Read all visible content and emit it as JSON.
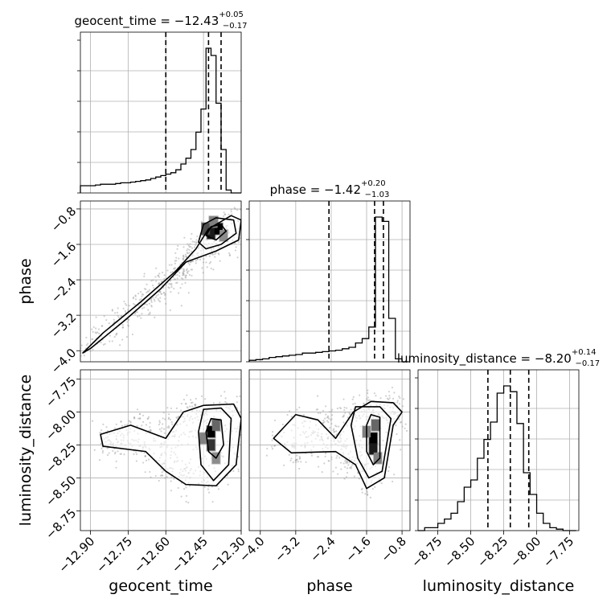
{
  "chart_data": {
    "type": "corner",
    "parameters": [
      "geocent_time",
      "phase",
      "luminosity_distance"
    ],
    "titles": [
      {
        "param": "geocent_time",
        "text": "geocent_time = −12.43",
        "sup": "+0.05",
        "sub": "−0.17"
      },
      {
        "param": "phase",
        "text": "phase = −1.42",
        "sup": "+0.20",
        "sub": "−1.03"
      },
      {
        "param": "luminosity_distance",
        "text": "luminosity_distance = −8.20",
        "sup": "+0.14",
        "sub": "−0.17"
      }
    ],
    "ranges": {
      "geocent_time": [
        -12.94,
        -12.3
      ],
      "phase": [
        -4.25,
        -0.62
      ],
      "luminosity_distance": [
        -8.9,
        -7.68
      ]
    },
    "ticks": {
      "geocent_time": [
        -12.9,
        -12.75,
        -12.6,
        -12.45,
        -12.3
      ],
      "phase": [
        -4.0,
        -3.2,
        -2.4,
        -1.6,
        -0.8
      ],
      "luminosity_distance": [
        -8.75,
        -8.5,
        -8.25,
        -8.0,
        -7.75
      ]
    },
    "tick_labels": {
      "geocent_time": [
        "−12.90",
        "−12.75",
        "−12.60",
        "−12.45",
        "−12.30"
      ],
      "phase": [
        "−4.0",
        "−3.2",
        "−2.4",
        "−1.6",
        "−0.8"
      ],
      "luminosity_distance": [
        "−8.75",
        "−8.50",
        "−8.25",
        "−8.00",
        "−7.75"
      ]
    },
    "quantile_lines": {
      "geocent_time": [
        -12.6,
        -12.43,
        -12.38
      ],
      "phase": [
        -2.45,
        -1.42,
        -1.22
      ],
      "luminosity_distance": [
        -8.37,
        -8.2,
        -8.06
      ]
    },
    "histograms": {
      "geocent_time": {
        "edges": [
          -12.94,
          -12.92,
          -12.9,
          -12.88,
          -12.86,
          -12.84,
          -12.82,
          -12.8,
          -12.78,
          -12.76,
          -12.74,
          -12.72,
          -12.7,
          -12.68,
          -12.66,
          -12.64,
          -12.62,
          -12.6,
          -12.58,
          -12.56,
          -12.54,
          -12.52,
          -12.5,
          -12.48,
          -12.46,
          -12.44,
          -12.42,
          -12.4,
          -12.38,
          -12.36,
          -12.34,
          -12.32,
          -12.3
        ],
        "counts": [
          0.05,
          0.05,
          0.05,
          0.055,
          0.06,
          0.06,
          0.06,
          0.065,
          0.07,
          0.07,
          0.075,
          0.08,
          0.085,
          0.09,
          0.1,
          0.11,
          0.12,
          0.13,
          0.14,
          0.16,
          0.2,
          0.24,
          0.3,
          0.42,
          0.58,
          1.0,
          0.95,
          0.62,
          0.3,
          0.02,
          0.0,
          0.0
        ]
      },
      "phase": {
        "edges": [
          -4.25,
          -4.1,
          -3.95,
          -3.8,
          -3.65,
          -3.5,
          -3.35,
          -3.2,
          -3.05,
          -2.9,
          -2.75,
          -2.6,
          -2.45,
          -2.3,
          -2.15,
          -2.0,
          -1.85,
          -1.7,
          -1.55,
          -1.4,
          -1.25,
          -1.1,
          -0.95,
          -0.8,
          -0.65
        ],
        "counts": [
          0.01,
          0.015,
          0.02,
          0.03,
          0.035,
          0.04,
          0.045,
          0.05,
          0.06,
          0.06,
          0.065,
          0.07,
          0.075,
          0.08,
          0.09,
          0.1,
          0.13,
          0.16,
          0.24,
          1.0,
          0.97,
          0.3,
          0.02,
          0.0
        ]
      },
      "luminosity_distance": {
        "edges": [
          -8.9,
          -8.85,
          -8.8,
          -8.75,
          -8.7,
          -8.65,
          -8.6,
          -8.55,
          -8.5,
          -8.45,
          -8.4,
          -8.35,
          -8.3,
          -8.25,
          -8.2,
          -8.15,
          -8.1,
          -8.05,
          -8.0,
          -7.95,
          -7.9,
          -7.85,
          -7.8,
          -7.75,
          -7.7
        ],
        "counts": [
          0.0,
          0.02,
          0.02,
          0.05,
          0.08,
          0.12,
          0.2,
          0.3,
          0.35,
          0.5,
          0.63,
          0.75,
          0.95,
          1.0,
          0.96,
          0.74,
          0.4,
          0.25,
          0.12,
          0.05,
          0.02,
          0.01,
          0.0,
          0.0
        ]
      }
    },
    "contour_panels": [
      {
        "x": "geocent_time",
        "y": "phase",
        "contours": [
          [
            [
              -12.93,
              -4.05
            ],
            [
              -12.85,
              -3.6
            ],
            [
              -12.7,
              -2.9
            ],
            [
              -12.56,
              -2.2
            ],
            [
              -12.48,
              -1.7
            ],
            [
              -12.43,
              -1.25
            ],
            [
              -12.34,
              -0.95
            ],
            [
              -12.3,
              -1.05
            ],
            [
              -12.31,
              -1.5
            ],
            [
              -12.4,
              -1.75
            ],
            [
              -12.52,
              -2.0
            ],
            [
              -12.62,
              -2.6
            ],
            [
              -12.76,
              -3.3
            ],
            [
              -12.9,
              -3.95
            ]
          ],
          [
            [
              -12.47,
              -1.55
            ],
            [
              -12.45,
              -1.15
            ],
            [
              -12.4,
              -1.0
            ],
            [
              -12.33,
              -1.05
            ],
            [
              -12.32,
              -1.35
            ],
            [
              -12.38,
              -1.6
            ],
            [
              -12.44,
              -1.7
            ]
          ],
          [
            [
              -12.44,
              -1.4
            ],
            [
              -12.42,
              -1.2
            ],
            [
              -12.38,
              -1.15
            ],
            [
              -12.36,
              -1.3
            ],
            [
              -12.4,
              -1.5
            ]
          ]
        ],
        "hotspots": [
          [
            -12.42,
            -1.35,
            0.9
          ],
          [
            -12.39,
            -1.25,
            1.0
          ],
          [
            -12.44,
            -1.25,
            0.7
          ],
          [
            -12.41,
            -1.1,
            0.5
          ],
          [
            -12.37,
            -1.4,
            0.45
          ]
        ]
      },
      {
        "x": "geocent_time",
        "y": "luminosity_distance",
        "contours": [
          [
            [
              -12.86,
              -8.17
            ],
            [
              -12.74,
              -8.1
            ],
            [
              -12.6,
              -8.2
            ],
            [
              -12.53,
              -8.0
            ],
            [
              -12.45,
              -7.95
            ],
            [
              -12.33,
              -7.94
            ],
            [
              -12.3,
              -8.05
            ],
            [
              -12.32,
              -8.4
            ],
            [
              -12.4,
              -8.56
            ],
            [
              -12.52,
              -8.55
            ],
            [
              -12.6,
              -8.45
            ],
            [
              -12.68,
              -8.3
            ],
            [
              -12.85,
              -8.26
            ]
          ],
          [
            [
              -12.47,
              -8.15
            ],
            [
              -12.45,
              -7.98
            ],
            [
              -12.38,
              -7.97
            ],
            [
              -12.34,
              -8.05
            ],
            [
              -12.35,
              -8.4
            ],
            [
              -12.41,
              -8.52
            ],
            [
              -12.46,
              -8.4
            ]
          ],
          [
            [
              -12.44,
              -8.15
            ],
            [
              -12.42,
              -8.05
            ],
            [
              -12.38,
              -8.06
            ],
            [
              -12.37,
              -8.25
            ],
            [
              -12.4,
              -8.35
            ],
            [
              -12.43,
              -8.3
            ]
          ]
        ],
        "hotspots": [
          [
            -12.42,
            -8.15,
            1.0
          ],
          [
            -12.42,
            -8.25,
            0.8
          ],
          [
            -12.4,
            -8.1,
            0.6
          ],
          [
            -12.45,
            -8.2,
            0.5
          ],
          [
            -12.4,
            -8.35,
            0.45
          ]
        ]
      },
      {
        "x": "phase",
        "y": "luminosity_distance",
        "contours": [
          [
            [
              -3.7,
              -8.2
            ],
            [
              -3.2,
              -8.02
            ],
            [
              -2.7,
              -8.06
            ],
            [
              -2.3,
              -8.2
            ],
            [
              -1.9,
              -8.0
            ],
            [
              -1.5,
              -7.92
            ],
            [
              -1.0,
              -7.93
            ],
            [
              -0.8,
              -8.0
            ],
            [
              -1.0,
              -8.1
            ],
            [
              -1.2,
              -8.5
            ],
            [
              -1.6,
              -8.58
            ],
            [
              -1.85,
              -8.4
            ],
            [
              -2.3,
              -8.3
            ],
            [
              -3.3,
              -8.31
            ]
          ],
          [
            [
              -1.95,
              -8.1
            ],
            [
              -1.85,
              -7.96
            ],
            [
              -1.3,
              -7.96
            ],
            [
              -1.05,
              -8.05
            ],
            [
              -1.25,
              -8.45
            ],
            [
              -1.55,
              -8.5
            ],
            [
              -1.8,
              -8.35
            ]
          ],
          [
            [
              -1.6,
              -8.1
            ],
            [
              -1.5,
              -8.02
            ],
            [
              -1.3,
              -8.04
            ],
            [
              -1.3,
              -8.35
            ],
            [
              -1.45,
              -8.4
            ],
            [
              -1.6,
              -8.3
            ]
          ]
        ],
        "hotspots": [
          [
            -1.45,
            -8.2,
            1.0
          ],
          [
            -1.45,
            -8.28,
            0.9
          ],
          [
            -1.4,
            -8.1,
            0.6
          ],
          [
            -1.6,
            -8.15,
            0.5
          ],
          [
            -1.35,
            -8.35,
            0.5
          ]
        ]
      }
    ],
    "grid": true
  }
}
